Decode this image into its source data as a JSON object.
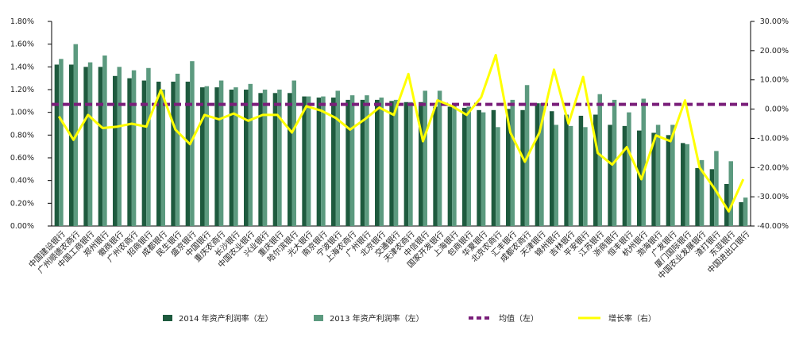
{
  "chart_data": {
    "type": "bar_line",
    "categories": [
      "中国建设银行",
      "广州顺德农商行",
      "中国工商银行",
      "郑州银行",
      "徽商银行",
      "广州农商行",
      "招商银行",
      "成都银行",
      "民生银行",
      "盛京银行",
      "中国银行",
      "重庆农商行",
      "长沙银行",
      "中国农业银行",
      "兴业银行",
      "重庆银行",
      "哈尔滨银行",
      "光大银行",
      "南京银行",
      "宁波银行",
      "上海农商行",
      "广州银行",
      "北京银行",
      "交通银行",
      "天津农商行",
      "中信银行",
      "国家开发银行",
      "上海银行",
      "包商银行",
      "华夏银行",
      "北京农商行",
      "汇丰银行",
      "成都农商行",
      "天津银行",
      "锦州银行",
      "吉林银行",
      "平安银行",
      "江苏银行",
      "浙商银行",
      "恒丰银行",
      "杭州银行",
      "渤海银行",
      "广发银行",
      "厦门国际银行",
      "中国农业发展银行",
      "渣打银行",
      "东亚银行",
      "中国进出口银行"
    ],
    "series": [
      {
        "name": "2014 年资产利润率（左）",
        "color": "#1e5a3e",
        "values": [
          1.42,
          1.42,
          1.4,
          1.4,
          1.32,
          1.3,
          1.28,
          1.27,
          1.27,
          1.27,
          1.22,
          1.22,
          1.2,
          1.2,
          1.17,
          1.17,
          1.17,
          1.14,
          1.13,
          1.13,
          1.11,
          1.11,
          1.11,
          1.1,
          1.09,
          1.09,
          1.05,
          1.05,
          1.04,
          1.02,
          1.02,
          1.03,
          1.02,
          1.08,
          1.01,
          0.98,
          0.97,
          0.98,
          0.89,
          0.88,
          0.84,
          0.82,
          0.8,
          0.73,
          0.51,
          0.5,
          0.37,
          0.21
        ]
      },
      {
        "name": "2013 年资产利润率（左）",
        "color": "#5c9a7f",
        "values": [
          1.47,
          1.6,
          1.44,
          1.5,
          1.4,
          1.37,
          1.39,
          1.2,
          1.34,
          1.45,
          1.23,
          1.28,
          1.22,
          1.25,
          1.2,
          1.2,
          1.28,
          1.14,
          1.14,
          1.19,
          1.15,
          1.15,
          1.13,
          1.11,
          1.09,
          1.19,
          1.19,
          1.06,
          1.05,
          1.0,
          0.87,
          1.11,
          1.24,
          1.08,
          0.89,
          0.88,
          0.87,
          1.16,
          1.11,
          1.0,
          1.12,
          0.89,
          0.89,
          0.72,
          0.58,
          0.66,
          0.57,
          0.25
        ]
      },
      {
        "name": "增长率（右）",
        "color": "#ffff00",
        "axis": "y2",
        "values": [
          -2.5,
          -10.5,
          -2,
          -6.5,
          -6,
          -5,
          -6,
          6.5,
          -7,
          -12,
          -2,
          -3.5,
          -1.5,
          -4,
          -2,
          -2,
          -8,
          1,
          -0.5,
          -3,
          -7,
          -3.5,
          0.5,
          -2,
          12,
          -11,
          3,
          1,
          -2,
          4,
          18.5,
          -8,
          -18,
          -8,
          13.5,
          -5,
          11,
          -15,
          -19,
          -13,
          -24,
          -9,
          -11,
          3,
          -20,
          -27,
          -35,
          -24
        ]
      }
    ],
    "mean": {
      "name": "均值（左）",
      "color": "#7a1f7a",
      "value": 1.07
    },
    "ylim": [
      0,
      1.8
    ],
    "yticks": [
      {
        "value": 0,
        "label": "0.00%"
      },
      {
        "value": 0.2,
        "label": "0.20%"
      },
      {
        "value": 0.4,
        "label": "0.40%"
      },
      {
        "value": 0.6,
        "label": "0.60%"
      },
      {
        "value": 0.8,
        "label": "0.80%"
      },
      {
        "value": 1.0,
        "label": "1.00%"
      },
      {
        "value": 1.2,
        "label": "1.20%"
      },
      {
        "value": 1.4,
        "label": "1.40%"
      },
      {
        "value": 1.6,
        "label": "1.60%"
      },
      {
        "value": 1.8,
        "label": "1.80%"
      }
    ],
    "y2lim": [
      -40,
      30
    ],
    "y2ticks": [
      {
        "value": -40,
        "label": "-40.00%"
      },
      {
        "value": -30,
        "label": "-30.00%"
      },
      {
        "value": -20,
        "label": "-20.00%"
      },
      {
        "value": -10,
        "label": "-10.00%"
      },
      {
        "value": 0,
        "label": "0.00%"
      },
      {
        "value": 10,
        "label": "10.00%"
      },
      {
        "value": 20,
        "label": "20.00%"
      },
      {
        "value": 30,
        "label": "30.00%"
      }
    ]
  }
}
